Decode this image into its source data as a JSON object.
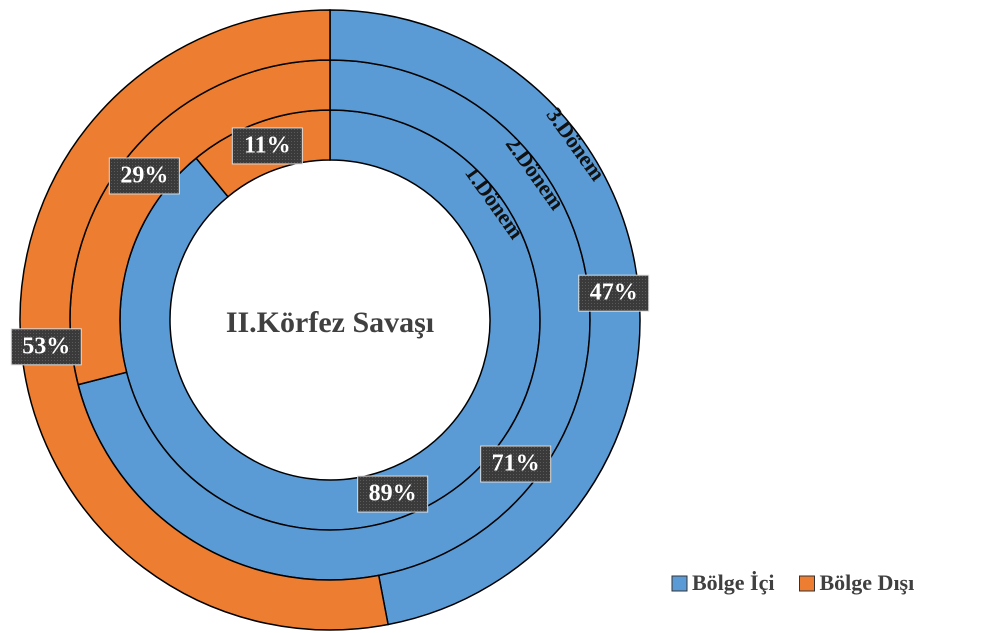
{
  "chart_data": {
    "type": "donut",
    "title": "II.Körfez Savaşı",
    "categories": [
      "Bölge İçi",
      "Bölge Dışı"
    ],
    "colors": [
      "#5b9bd5",
      "#ed7d31"
    ],
    "rings": [
      {
        "name": "1.Dönem",
        "values": [
          89,
          11
        ],
        "value_labels": [
          "89%",
          "11%"
        ]
      },
      {
        "name": "2.Dönem",
        "values": [
          71,
          29
        ],
        "value_labels": [
          "71%",
          "29%"
        ]
      },
      {
        "name": "3.Dönem",
        "values": [
          47,
          53
        ],
        "value_labels": [
          "47%",
          "53%"
        ]
      }
    ],
    "legend": "bottom-right"
  }
}
